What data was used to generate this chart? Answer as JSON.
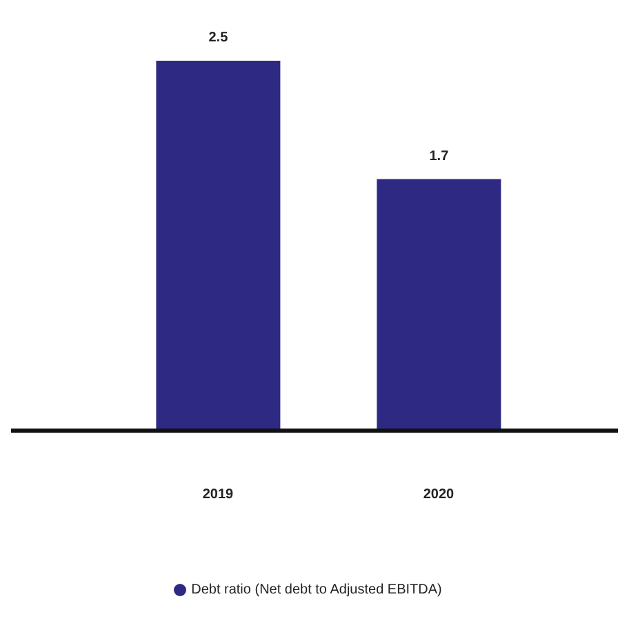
{
  "chart_data": {
    "type": "bar",
    "categories": [
      "2019",
      "2020"
    ],
    "series": [
      {
        "name": "Debt ratio (Net debt to Adjusted EBITDA)",
        "color": "#2e2a84",
        "values": [
          2.5,
          1.7
        ]
      }
    ],
    "data_labels": true,
    "legend": "bottom"
  }
}
